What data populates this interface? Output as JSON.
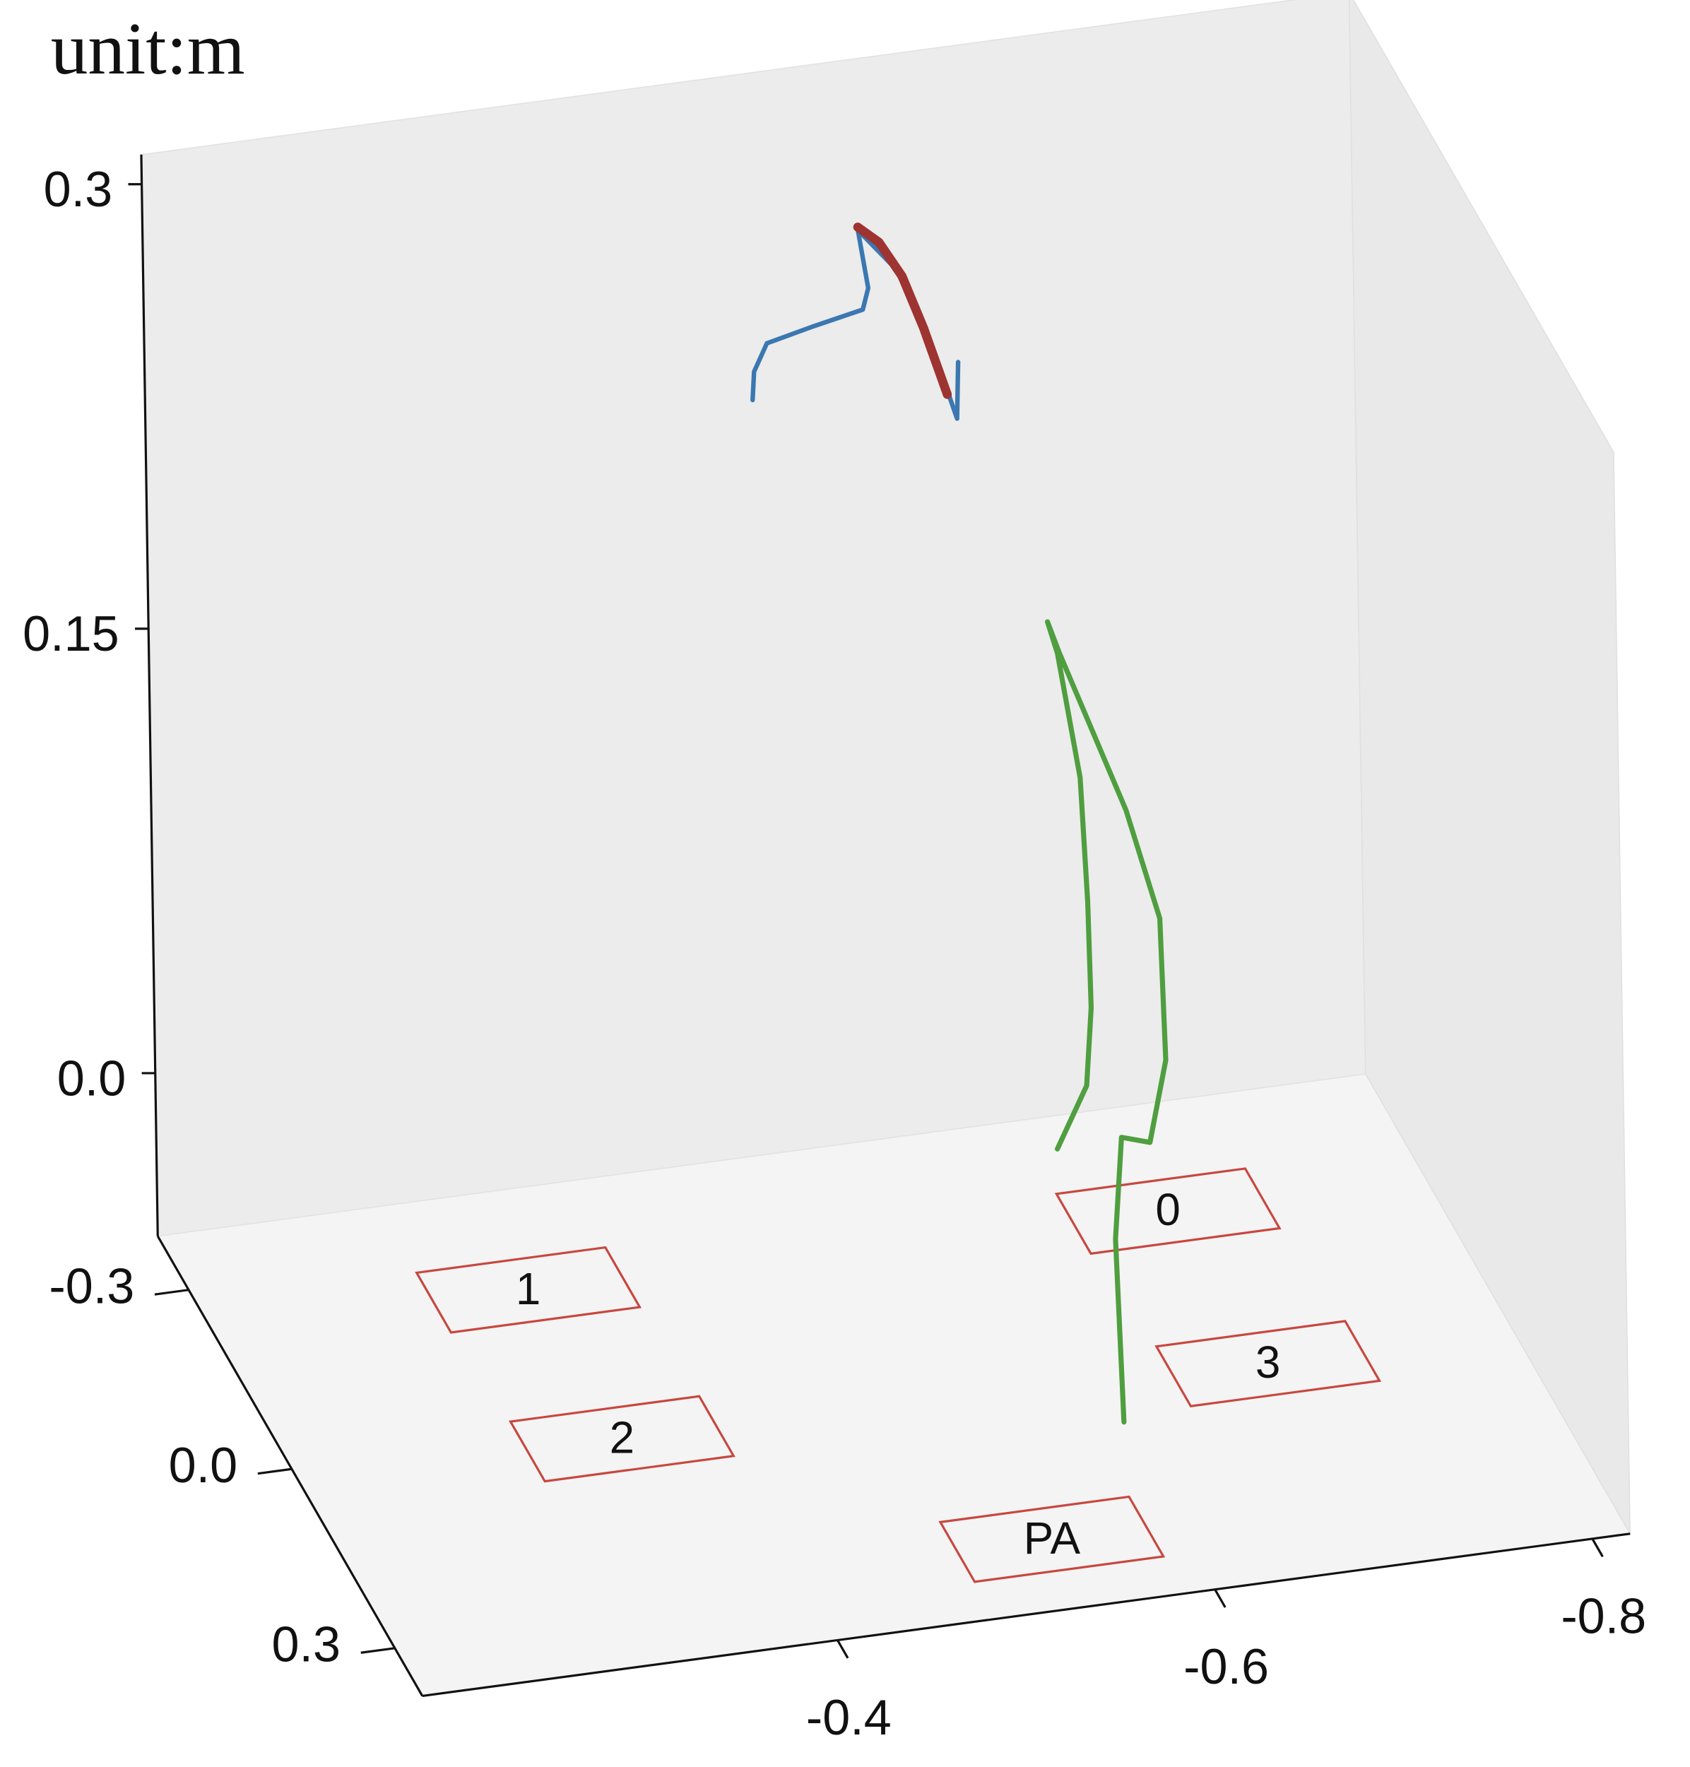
{
  "chart_data": {
    "type": "line3d",
    "title": "unit:m",
    "xlim": [
      -0.18,
      -0.82
    ],
    "ylim": [
      -0.39,
      0.38
    ],
    "zlim": [
      -0.055,
      0.31
    ],
    "xticks": [
      -0.4,
      -0.6,
      -0.8
    ],
    "yticks": [
      -0.3,
      {
        "value": 0,
        "label": "0.0"
      },
      0.3
    ],
    "zticks": [
      0.3,
      0.15,
      {
        "value": 0,
        "label": "0.0"
      }
    ],
    "series": [
      {
        "color": "#3b78b1",
        "width": 4,
        "x": [
          -0.45,
          -0.451,
          -0.458,
          -0.482,
          -0.509,
          -0.512,
          -0.507,
          -0.527,
          -0.541,
          -0.554,
          -0.558,
          -0.559
        ],
        "y": [
          -0.1,
          -0.1,
          -0.1,
          -0.1,
          -0.1,
          -0.1,
          -0.1,
          -0.1,
          -0.1,
          -0.1,
          -0.1,
          -0.1
        ],
        "z": [
          0.2625,
          0.272,
          0.281,
          0.2845,
          0.288,
          0.295,
          0.315,
          0.3,
          0.279,
          0.255,
          0.247,
          0.266
        ]
      },
      {
        "color": "#9e3431",
        "width": 8,
        "x": [
          -0.507,
          -0.518,
          -0.53,
          -0.541,
          -0.553
        ],
        "y": [
          -0.1,
          -0.1,
          -0.1,
          -0.1,
          -0.1
        ],
        "z": [
          0.316,
          0.31,
          0.2975,
          0.279,
          0.2556
        ]
      },
      {
        "color": "#4f9e3f",
        "width": 4.5,
        "x": [
          -0.601,
          -0.598,
          -0.602,
          -0.617,
          -0.626,
          -0.624,
          -0.607,
          -0.573,
          -0.567,
          -0.572,
          -0.583,
          -0.586,
          -0.587,
          -0.584,
          -0.568
        ],
        "y": [
          0.11,
          0.11,
          0.11,
          0.11,
          0.11,
          0.11,
          0.11,
          0.11,
          0.11,
          0.11,
          0.11,
          0.11,
          0.11,
          0.11,
          0.11
        ],
        "z": [
          -0.053,
          0.009,
          0.043,
          0.04,
          0.067,
          0.115,
          0.153,
          0.209,
          0.22,
          0.209,
          0.166,
          0.124,
          0.088,
          0.062,
          0.042
        ]
      }
    ],
    "marker_color": "#c8473f",
    "markers": [
      {
        "label": "0",
        "x": -0.684,
        "y": -0.218
      },
      {
        "label": "1",
        "x": -0.347,
        "y": -0.229
      },
      {
        "label": "2",
        "x": -0.351,
        "y": 0.022
      },
      {
        "label": "3",
        "x": -0.69,
        "y": 0.04
      },
      {
        "label": "PA",
        "x": -0.534,
        "y": 0.268
      }
    ]
  }
}
